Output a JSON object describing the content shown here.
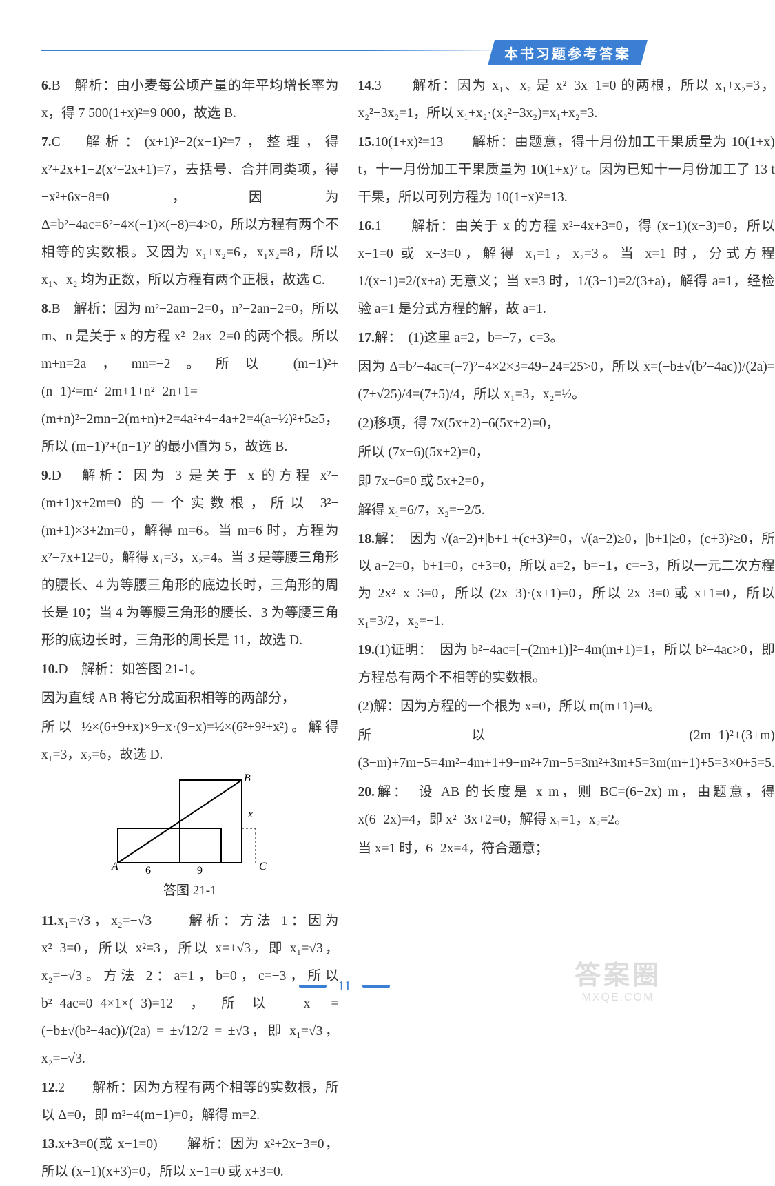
{
  "doc": {
    "header_label": "本书习题参考答案",
    "page_number": "11",
    "figure_caption": "答图 21-1"
  },
  "left": [
    {
      "n": "6.",
      "a": "B",
      "t": "解析：由小麦每公顷产量的年平均增长率为 x，得 7 500(1+x)²=9 000，故选 B."
    },
    {
      "n": "7.",
      "a": "C",
      "t": "解析：(x+1)²−2(x−1)²=7，整理，得 x²+2x+1−2(x²−2x+1)=7，去括号、合并同类项，得 −x²+6x−8=0，因为 Δ=b²−4ac=6²−4×(−1)×(−8)=4>0，所以方程有两个不相等的实数根。又因为 x₁+x₂=6，x₁x₂=8，所以 x₁、x₂ 均为正数，所以方程有两个正根，故选 C."
    },
    {
      "n": "8.",
      "a": "B",
      "t": "解析：因为 m²−2am−2=0，n²−2an−2=0，所以 m、n 是关于 x 的方程 x²−2ax−2=0 的两个根。所以 m+n=2a，mn=−2。所以 (m−1)²+(n−1)²=m²−2m+1+n²−2n+1=(m+n)²−2mn−2(m+n)+2=4a²+4−4a+2=4(a−½)²+5≥5，所以 (m−1)²+(n−1)² 的最小值为 5，故选 B."
    },
    {
      "n": "9.",
      "a": "D",
      "t": "解析：因为 3 是关于 x 的方程 x²−(m+1)x+2m=0 的一个实数根，所以 3²−(m+1)×3+2m=0，解得 m=6。当 m=6 时，方程为 x²−7x+12=0，解得 x₁=3，x₂=4。当 3 是等腰三角形的腰长、4 为等腰三角形的底边长时，三角形的周长是 10；当 4 为等腰三角形的腰长、3 为等腰三角形的底边长时，三角形的周长是 11，故选 D."
    },
    {
      "n": "10.",
      "a": "D",
      "t": "解析：如答图 21-1。"
    },
    {
      "n": "",
      "a": "",
      "t": "因为直线 AB 将它分成面积相等的两部分，"
    },
    {
      "n": "",
      "a": "",
      "t": "所以 ½×(6+9+x)×9−x·(9−x)=½×(6²+9²+x²)。解得 x₁=3，x₂=6，故选 D."
    },
    {
      "fig": true
    },
    {
      "n": "11.",
      "a": "x₁=√3，x₂=−√3",
      "t": "　解析：方法 1：因为 x²−3=0，所以 x²=3，所以 x=±√3，即 x₁=√3，x₂=−√3。方法 2：a=1，b=0，c=−3，所以 b²−4ac=0−4×1×(−3)=12，所以 x = (−b±√(b²−4ac))/(2a) = ±√12/2 = ±√3，即 x₁=√3，x₂=−√3."
    },
    {
      "n": "12.",
      "a": "2",
      "t": "　解析：因为方程有两个相等的实数根，所以 Δ=0，即 m²−4(m−1)=0，解得 m=2."
    },
    {
      "n": "13.",
      "a": "x+3=0(或 x−1=0)",
      "t": "　解析：因为 x²+2x−3=0，所以 (x−1)(x+3)=0，所以 x−1=0 或 x+3=0."
    }
  ],
  "right": [
    {
      "n": "14.",
      "a": "3",
      "t": "　解析：因为 x₁、x₂ 是 x²−3x−1=0 的两根，所以 x₁+x₂=3，x₂²−3x₂=1，所以 x₁+x₂·(x₂²−3x₂)=x₁+x₂=3."
    },
    {
      "n": "15.",
      "a": "10(1+x)²=13",
      "t": "　解析：由题意，得十月份加工干果质量为 10(1+x) t，十一月份加工干果质量为 10(1+x)² t。因为已知十一月份加工了 13 t 干果，所以可列方程为 10(1+x)²=13."
    },
    {
      "n": "16.",
      "a": "1",
      "t": "　解析：由关于 x 的方程 x²−4x+3=0，得 (x−1)(x−3)=0，所以 x−1=0 或 x−3=0，解得 x₁=1，x₂=3。当 x=1 时，分式方程 1/(x−1)=2/(x+a) 无意义；当 x=3 时，1/(3−1)=2/(3+a)，解得 a=1，经检验 a=1 是分式方程的解，故 a=1."
    },
    {
      "n": "17.",
      "a": "解：",
      "t": "(1)这里 a=2，b=−7，c=3。"
    },
    {
      "n": "",
      "a": "",
      "t": "因为 Δ=b²−4ac=(−7)²−4×2×3=49−24=25>0，所以 x=(−b±√(b²−4ac))/(2a)=(7±√25)/4=(7±5)/4，所以 x₁=3，x₂=½。"
    },
    {
      "n": "",
      "a": "",
      "t": "(2)移项，得 7x(5x+2)−6(5x+2)=0，"
    },
    {
      "n": "",
      "a": "",
      "t": "所以 (7x−6)(5x+2)=0，"
    },
    {
      "n": "",
      "a": "",
      "t": "即 7x−6=0 或 5x+2=0，"
    },
    {
      "n": "",
      "a": "",
      "t": "解得 x₁=6/7，x₂=−2/5."
    },
    {
      "n": "18.",
      "a": "解：",
      "t": "因为 √(a−2)+|b+1|+(c+3)²=0，√(a−2)≥0，|b+1|≥0，(c+3)²≥0，所以 a−2=0，b+1=0，c+3=0，所以 a=2，b=−1，c=−3，所以一元二次方程为 2x²−x−3=0，所以 (2x−3)·(x+1)=0，所以 2x−3=0 或 x+1=0，所以 x₁=3/2，x₂=−1."
    },
    {
      "n": "19.",
      "a": "(1)证明：",
      "t": "因为 b²−4ac=[−(2m+1)]²−4m(m+1)=1，所以 b²−4ac>0，即方程总有两个不相等的实数根。"
    },
    {
      "n": "",
      "a": "",
      "t": "(2)解：因为方程的一个根为 x=0，所以 m(m+1)=0。"
    },
    {
      "n": "",
      "a": "",
      "t": "所以 (2m−1)²+(3+m)(3−m)+7m−5=4m²−4m+1+9−m²+7m−5=3m²+3m+5=3m(m+1)+5=3×0+5=5."
    },
    {
      "n": "20.",
      "a": "解：",
      "t": "设 AB 的长度是 x m，则 BC=(6−2x) m，由题意，得 x(6−2x)=4，即 x²−3x+2=0，解得 x₁=1，x₂=2。"
    },
    {
      "n": "",
      "a": "",
      "t": "当 x=1 时，6−2x=4，符合题意；"
    }
  ],
  "fig": {
    "labels": {
      "A": "A",
      "B": "B",
      "C": "C",
      "x": "x",
      "six": "6",
      "nine": "9"
    }
  },
  "watermark": {
    "top": "答案圈",
    "bottom": "MXQE.COM"
  }
}
